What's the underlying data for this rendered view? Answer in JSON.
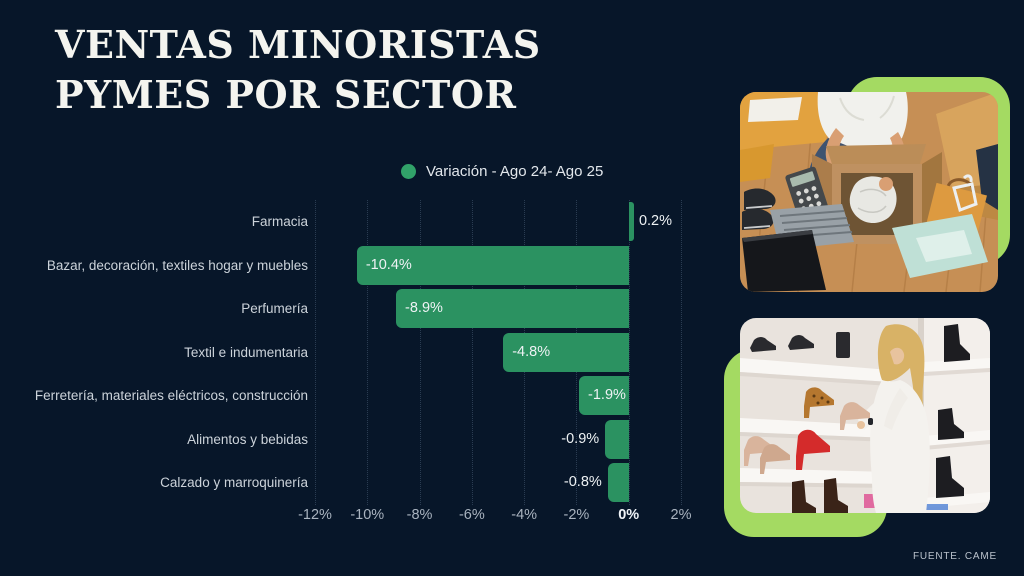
{
  "page": {
    "title_line1": "VENTAS MINORISTAS",
    "title_line2": "PYMES POR SECTOR",
    "source": "FUENTE. CAME"
  },
  "legend": {
    "label": "Variación - Ago 24- Ago 25",
    "dot_color": "#31a269"
  },
  "chart_data": {
    "type": "bar",
    "orientation": "horizontal",
    "series_name": "Variación - Ago 24- Ago 25",
    "categories": [
      "Farmacia",
      "Bazar, decoración, textiles hogar y muebles",
      "Perfumería",
      "Textil e indumentaria",
      "Ferretería, materiales eléctricos, construcción",
      "Alimentos y bebidas",
      "Calzado y marroquinería"
    ],
    "values": [
      0.2,
      -10.4,
      -8.9,
      -4.8,
      -1.9,
      -0.9,
      -0.8
    ],
    "value_labels": [
      "0.2%",
      "-10.4%",
      "-8.9%",
      "-4.8%",
      "-1.9%",
      "-0.9%",
      "-0.8%"
    ],
    "xlim": [
      -12,
      2
    ],
    "x_tick_values": [
      -12,
      -10,
      -8,
      -6,
      -4,
      -2,
      0,
      2
    ],
    "x_tick_labels": [
      "-12%",
      "-10%",
      "-8%",
      "-6%",
      "-4%",
      "-2%",
      "0%",
      "2%"
    ],
    "grid": "vertical-dotted",
    "legend_position": "top-center",
    "bar_color": "#2b9261",
    "value_label_color": "#eef2f4",
    "category_label_color": "#ccd3da"
  },
  "photos": {
    "top_alt": "Persona empacando un pedido en caja de cartón con laptop y calculadora",
    "bottom_alt": "Mujer eligiendo zapatos en una zapatería"
  },
  "colors": {
    "background": "#071629",
    "bar_green": "#2b9261",
    "light_green_accent": "#a4da62",
    "grid": "#2a3c52",
    "title": "#f4f4ef"
  }
}
